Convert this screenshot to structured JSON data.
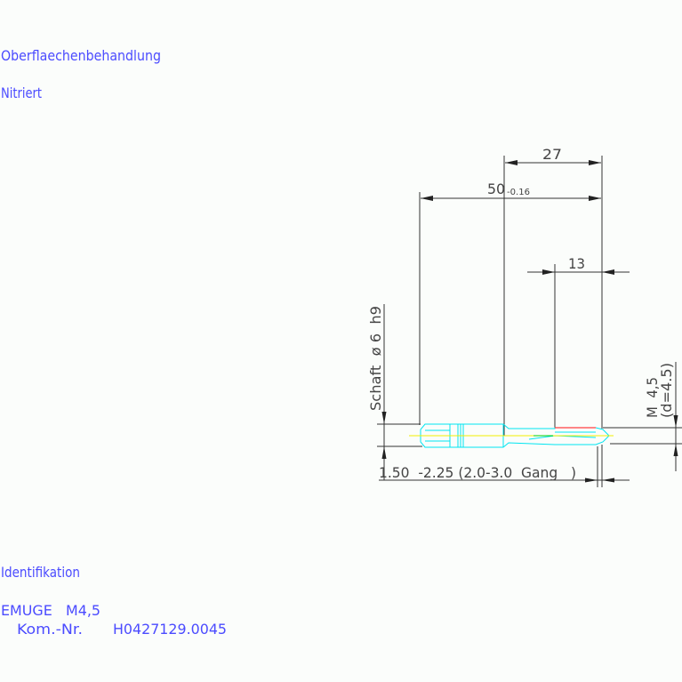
{
  "labels": {
    "surface_heading": "Oberflaechenbehandlung",
    "surface_value": "Nitriert",
    "ident_heading": "Identifikation",
    "ident_line1": "EMUGE   M4,5",
    "ident_komnr_label": "Kom.-Nr.",
    "ident_komnr_value": "H0427129.0045"
  },
  "dimensions": {
    "d27": "27",
    "d50": "50",
    "d50_tol": "-0.16",
    "d13": "13",
    "shank": "Schaft  ø 6  h9",
    "thread": "M  4,5",
    "thread_d": "(d=4.5)",
    "chamfer": "1.50  -2.25 (2.0-3.0  Gang   )"
  },
  "colors": {
    "text": "#4b4bff",
    "outline": "#00e5f0",
    "centerline": "#f0f000",
    "thread_mark": "#ff4040",
    "dim_line": "#333333"
  }
}
